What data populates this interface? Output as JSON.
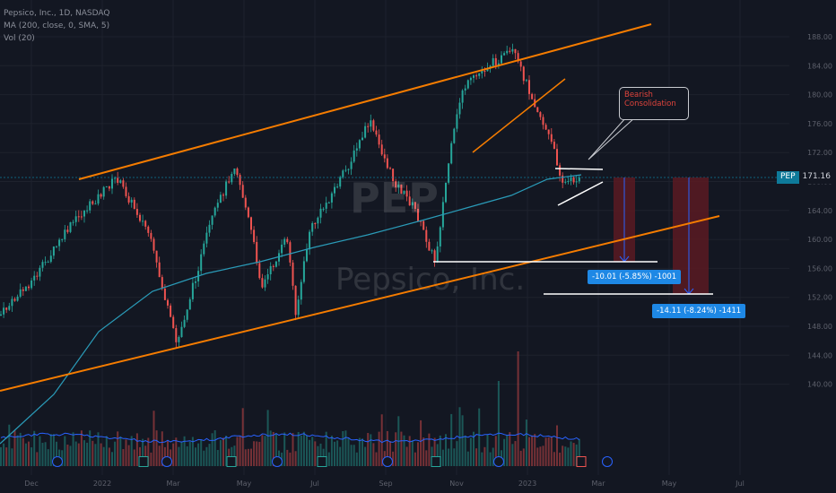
{
  "legend": {
    "line1": "Pepsico, Inc., 1D, NASDAQ",
    "line2": "MA (200, close, 0, SMA, 5)",
    "line3": "Vol (20)"
  },
  "watermark": {
    "ticker": "PEP",
    "name": "Pepsico, Inc."
  },
  "price_tag": {
    "symbol": "PEP",
    "value": "171.16"
  },
  "annotation": {
    "title": "Bearish",
    "subtitle": "Consolidation"
  },
  "measure_1": {
    "label": "-10.01 (-5.85%) -1001"
  },
  "measure_2": {
    "label": "-14.11 (-8.24%) -1411"
  },
  "colors": {
    "up": "#26a69a",
    "down": "#ef5350",
    "ma": "#2a9bb8",
    "channel": "#f57c00",
    "support": "#ffffff",
    "background": "#131722",
    "measure_zone": "#5b1a22"
  },
  "chart_data": {
    "type": "candlestick",
    "price_axis": {
      "ylim": [
        139,
        191
      ],
      "ticks": [
        "188.00",
        "184.00",
        "180.00",
        "176.00",
        "172.00",
        "168.00",
        "164.00",
        "160.00",
        "156.00",
        "152.00",
        "148.00",
        "144.00",
        "140.00"
      ]
    },
    "time_axis": {
      "labels": [
        "Dec",
        "2022",
        "Mar",
        "May",
        "Jul",
        "Sep",
        "Nov",
        "2023",
        "Mar",
        "May",
        "Jul"
      ]
    },
    "last_price": 171.16,
    "measures": [
      {
        "change": -10.01,
        "percent": -5.85,
        "ticks": -1001
      },
      {
        "change": -14.11,
        "percent": -8.24,
        "ticks": -1411
      }
    ]
  }
}
